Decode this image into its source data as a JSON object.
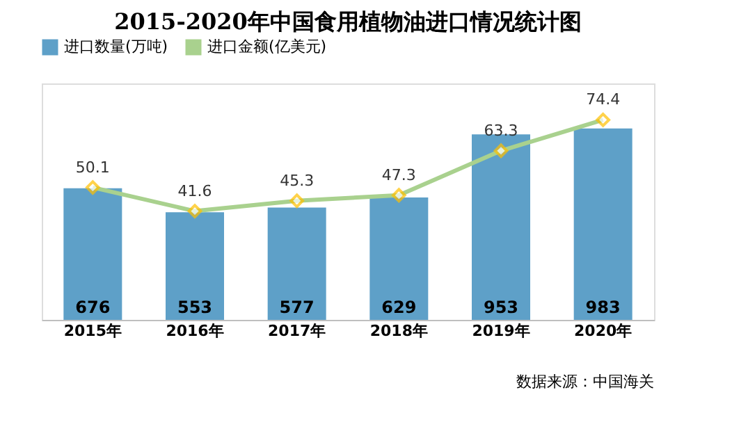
{
  "chart_data": {
    "type": "bar",
    "title": "2015-2020年中国食用植物油进口情况统计图",
    "categories": [
      "2015年",
      "2016年",
      "2017年",
      "2018年",
      "2019年",
      "2020年"
    ],
    "series": [
      {
        "name": "进口数量(万吨)",
        "color": "#5ea0c8",
        "values": [
          676,
          553,
          577,
          629,
          953,
          983
        ]
      },
      {
        "name": "进口金额(亿美元)",
        "type": "line",
        "axis": "y2",
        "color": "#a9d18e",
        "marker": "diamond",
        "values": [
          50.1,
          41.6,
          45.3,
          47.3,
          63.3,
          74.4
        ]
      }
    ],
    "data_labels": true,
    "legend": "top",
    "grid": false,
    "tick_labels": "x",
    "annotations": [
      "数据来源：中国海关"
    ]
  }
}
